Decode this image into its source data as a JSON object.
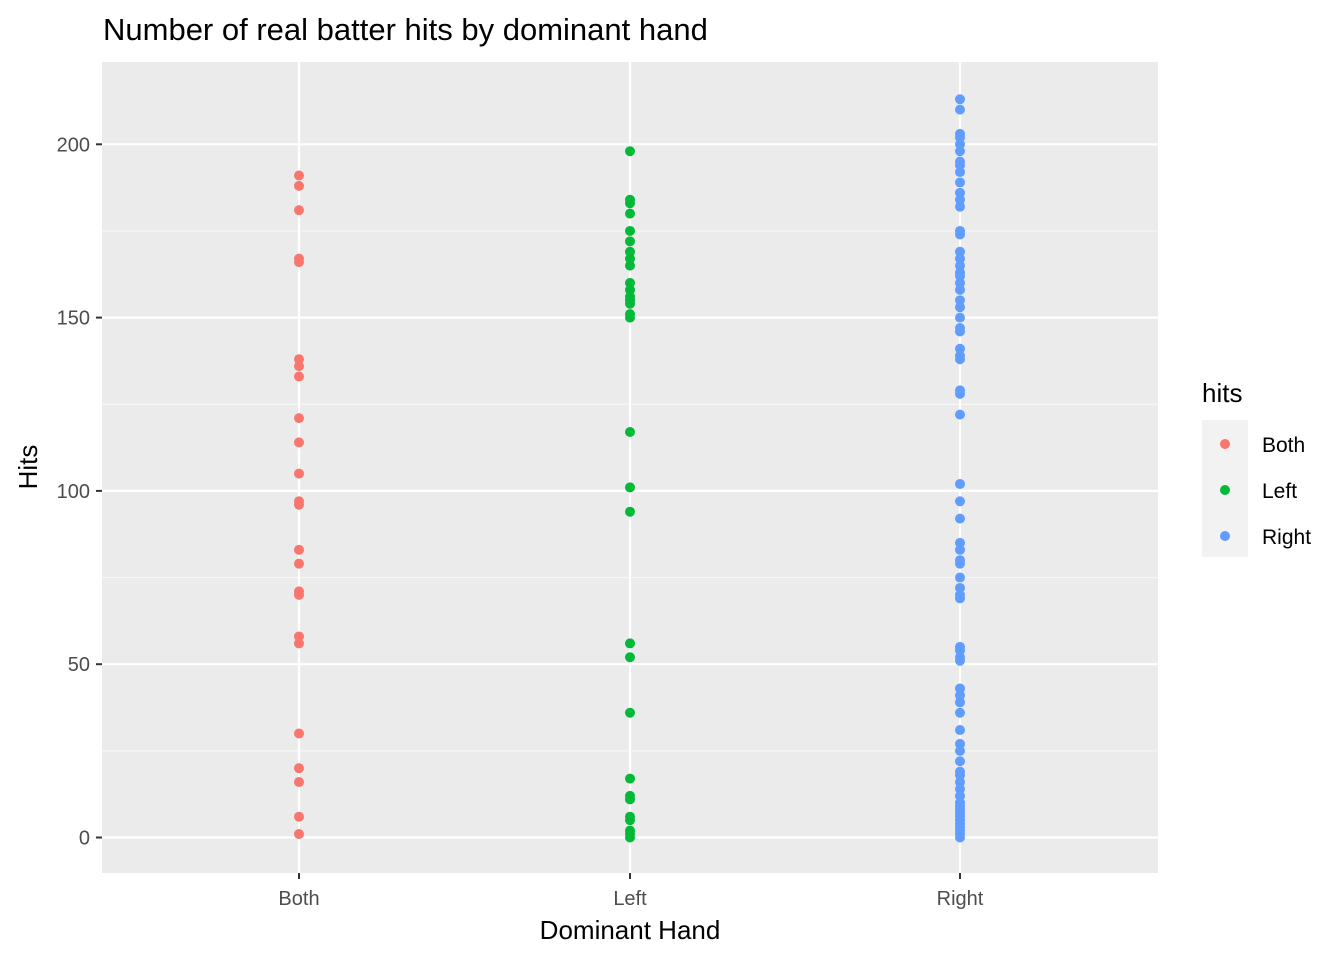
{
  "chart_data": {
    "type": "scatter",
    "title": "Number of real batter hits by dominant hand",
    "xlabel": "Dominant Hand",
    "ylabel": "Hits",
    "categories": [
      "Both",
      "Left",
      "Right"
    ],
    "y_ticks": [
      0,
      50,
      100,
      150,
      200
    ],
    "ylim": [
      -10.6,
      223.5
    ],
    "grid": true,
    "legend": {
      "title": "hits",
      "placement": "right"
    },
    "series": [
      {
        "name": "Both",
        "color": "#F8766D",
        "x": "Both",
        "values": [
          191,
          188,
          181,
          167,
          166,
          138,
          136,
          133,
          121,
          114,
          105,
          97,
          96,
          83,
          79,
          71,
          70,
          58,
          56,
          30,
          20,
          16,
          6,
          1
        ]
      },
      {
        "name": "Left",
        "color": "#00BA38",
        "x": "Left",
        "values": [
          198,
          184,
          183,
          180,
          175,
          172,
          169,
          167,
          165,
          160,
          158,
          156,
          155,
          154,
          151,
          150,
          117,
          101,
          94,
          56,
          52,
          36,
          17,
          12,
          11,
          6,
          5,
          2,
          1,
          0
        ]
      },
      {
        "name": "Right",
        "color": "#619CFF",
        "x": "Right",
        "values": [
          213,
          210,
          203,
          202,
          200,
          198,
          195,
          194,
          192,
          189,
          186,
          184,
          182,
          175,
          174,
          169,
          167,
          165,
          163,
          162,
          160,
          158,
          155,
          153,
          150,
          147,
          146,
          141,
          139,
          138,
          129,
          128,
          122,
          102,
          97,
          92,
          85,
          83,
          80,
          79,
          75,
          72,
          70,
          69,
          55,
          54,
          52,
          51,
          43,
          41,
          39,
          36,
          31,
          27,
          25,
          22,
          19,
          18,
          16,
          14,
          12,
          10,
          9,
          8,
          7,
          6,
          5,
          4,
          3,
          2,
          1,
          0
        ]
      }
    ]
  }
}
